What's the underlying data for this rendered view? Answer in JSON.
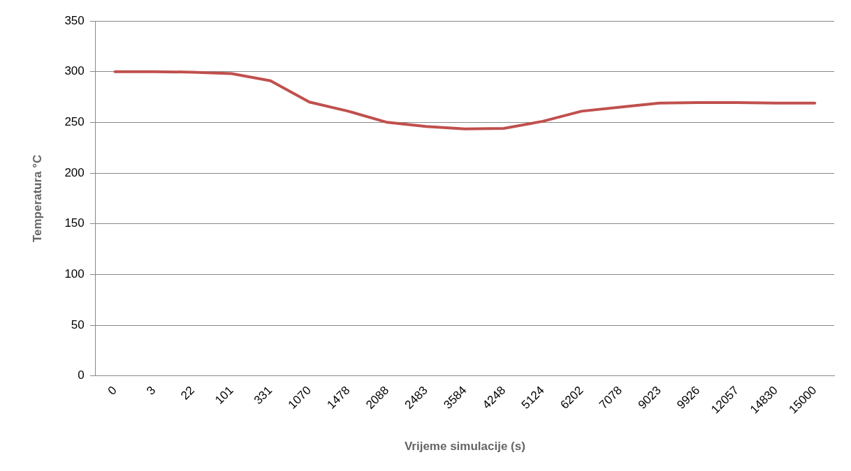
{
  "chart_data": {
    "type": "line",
    "xlabel": "Vrijeme simulacije (s)",
    "ylabel": "Temperatura °C",
    "categories": [
      "0",
      "3",
      "22",
      "101",
      "331",
      "1070",
      "1478",
      "2088",
      "2483",
      "3584",
      "4248",
      "5124",
      "6202",
      "7078",
      "9023",
      "9926",
      "12057",
      "14830",
      "15000"
    ],
    "series": [
      {
        "color": "#c0504d",
        "values": [
          300,
          300,
          299.5,
          298,
          291,
          270,
          261,
          250,
          246,
          243.5,
          244,
          251,
          261,
          265,
          269,
          269.5,
          269.5,
          269,
          269
        ]
      }
    ],
    "ylim": [
      0,
      350
    ],
    "yticks": [
      0,
      50,
      100,
      150,
      200,
      250,
      300,
      350
    ],
    "grid": "y",
    "legend": false,
    "marker": "none",
    "line_style": "solid"
  }
}
